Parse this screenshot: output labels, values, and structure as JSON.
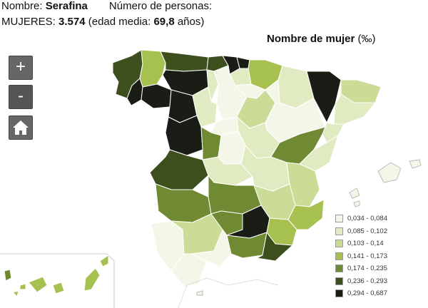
{
  "info": {
    "name_label": "Nombre:",
    "name_value": "Serafina",
    "count_label": "Número de personas:",
    "women_label": "MUJERES:",
    "women_value": "3.574",
    "age_prefix": "(edad media:",
    "age_value": "69,8",
    "age_suffix": "años)"
  },
  "map_title": "Nombre de mujer",
  "map_unit": "(‰)",
  "controls": {
    "zoom_in": "+",
    "zoom_out": "-",
    "home_icon": "house-icon"
  },
  "legend": [
    {
      "label": "0,034 - 0,084",
      "color": "#f4f7e8"
    },
    {
      "label": "0,085 - 0,102",
      "color": "#e1ebc2"
    },
    {
      "label": "0,103 - 0,14",
      "color": "#cbdc96"
    },
    {
      "label": "0,141 - 0,173",
      "color": "#a7c150"
    },
    {
      "label": "0,174 - 0,235",
      "color": "#6f8a32"
    },
    {
      "label": "0,236 - 0,293",
      "color": "#3e4f1e"
    },
    {
      "label": "0,294 - 0,687",
      "color": "#1a1d15"
    }
  ]
}
